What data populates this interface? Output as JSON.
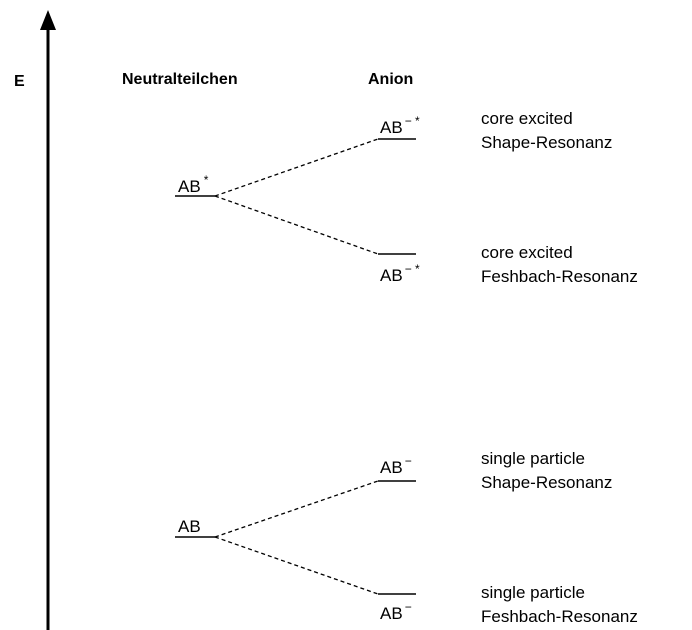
{
  "axis_label": "E",
  "columns": [
    "Neutralteilchen",
    "Anion"
  ],
  "neutral_levels": [
    {
      "base": "AB",
      "sup": "*"
    },
    {
      "base": "AB",
      "sup": ""
    }
  ],
  "anion_levels": [
    {
      "base": "AB",
      "sup": "− *",
      "description": [
        "core excited",
        "Shape-Resonanz"
      ]
    },
    {
      "base": "AB",
      "sup": "− *",
      "description": [
        "core excited",
        "Feshbach-Resonanz"
      ]
    },
    {
      "base": "AB",
      "sup": "−",
      "description": [
        "single particle",
        "Shape-Resonanz"
      ]
    },
    {
      "base": "AB",
      "sup": "−",
      "description": [
        "single particle",
        "Feshbach-Resonanz"
      ]
    }
  ]
}
